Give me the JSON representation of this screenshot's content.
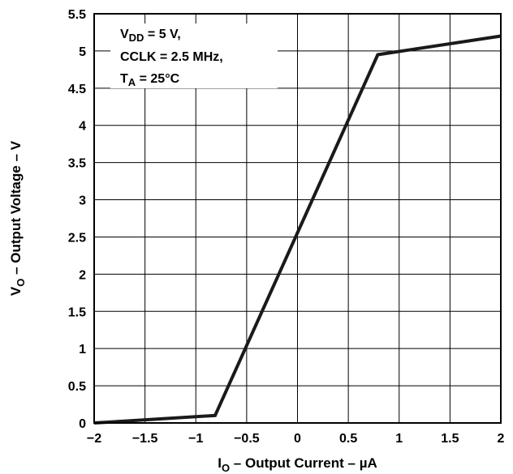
{
  "chart_data": {
    "type": "line",
    "x_axis": {
      "label_main": "I",
      "label_sub": "O",
      "label_rest": " – Output Current – µA",
      "lim": [
        -2,
        2
      ],
      "ticks": [
        "−2",
        "−1.5",
        "−1",
        "−0.5",
        "0",
        "0.5",
        "1",
        "1.5",
        "2"
      ],
      "tick_values": [
        -2,
        -1.5,
        -1,
        -0.5,
        0,
        0.5,
        1,
        1.5,
        2
      ]
    },
    "y_axis": {
      "label_main": "V",
      "label_sub": "O",
      "label_rest": " – Output Voltage – V",
      "lim": [
        0,
        5.5
      ],
      "ticks": [
        "0",
        "0.5",
        "1",
        "1.5",
        "2",
        "2.5",
        "3",
        "3.5",
        "4",
        "4.5",
        "5",
        "5.5"
      ],
      "tick_values": [
        0,
        0.5,
        1,
        1.5,
        2,
        2.5,
        3,
        3.5,
        4,
        4.5,
        5,
        5.5
      ]
    },
    "grid": true,
    "series": [
      {
        "x": [
          -2,
          -0.81,
          0.79,
          2
        ],
        "y": [
          0,
          0.1,
          4.95,
          5.2
        ],
        "color": "#1a1a1a"
      }
    ],
    "annotation": {
      "line1_main": "V",
      "line1_sub": "DD",
      "line1_rest": " = 5 V,",
      "line2": "CCLK = 2.5 MHz,",
      "line3_main": "T",
      "line3_sub": "A",
      "line3_rest": " = 25°C"
    }
  }
}
